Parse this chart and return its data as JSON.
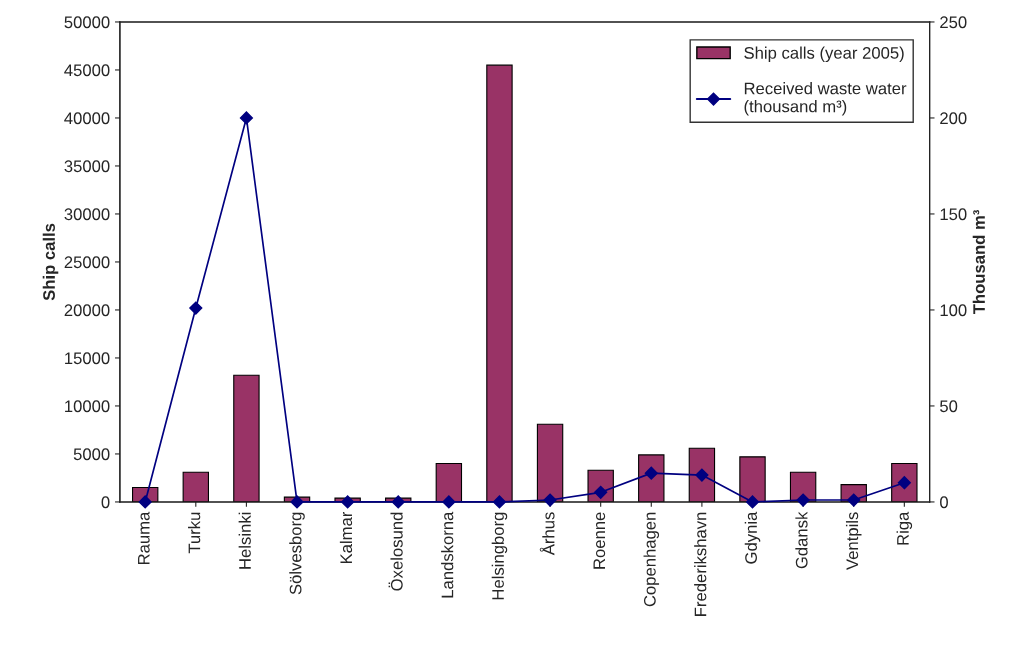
{
  "chart_data": {
    "type": "bar",
    "categories": [
      "Rauma",
      "Turku",
      "Helsinki",
      "Sölvesborg",
      "Kalmar",
      "Öxelosund",
      "Landskorna",
      "Helsingborg",
      "Århus",
      "Roenne",
      "Copenhagen",
      "Frederikshavn",
      "Gdynia",
      "Gdansk",
      "Ventpils",
      "Riga"
    ],
    "series": [
      {
        "name": "Ship calls (year 2005)",
        "color": "#993366",
        "values": [
          1500,
          3100,
          13200,
          500,
          400,
          400,
          4000,
          45500,
          8100,
          3300,
          4900,
          5600,
          4700,
          3100,
          1800,
          4000
        ]
      },
      {
        "name": "Received waste water\n(thousand m³)",
        "type": "line",
        "axis": "y2",
        "color": "#000080",
        "marker": "diamond",
        "values": [
          0,
          101,
          200,
          0,
          0,
          0,
          0,
          0,
          1,
          5,
          15,
          14,
          0,
          1,
          1,
          10
        ]
      }
    ],
    "ylabel": "Ship calls",
    "y2label": "Thousand m³",
    "ylim": [
      0,
      50000
    ],
    "yticks": [
      0,
      5000,
      10000,
      15000,
      20000,
      25000,
      30000,
      35000,
      40000,
      45000,
      50000
    ],
    "y2lim": [
      0,
      250
    ],
    "y2ticks": [
      0,
      50,
      100,
      150,
      200,
      250
    ],
    "grid": false,
    "legend": "top right"
  }
}
